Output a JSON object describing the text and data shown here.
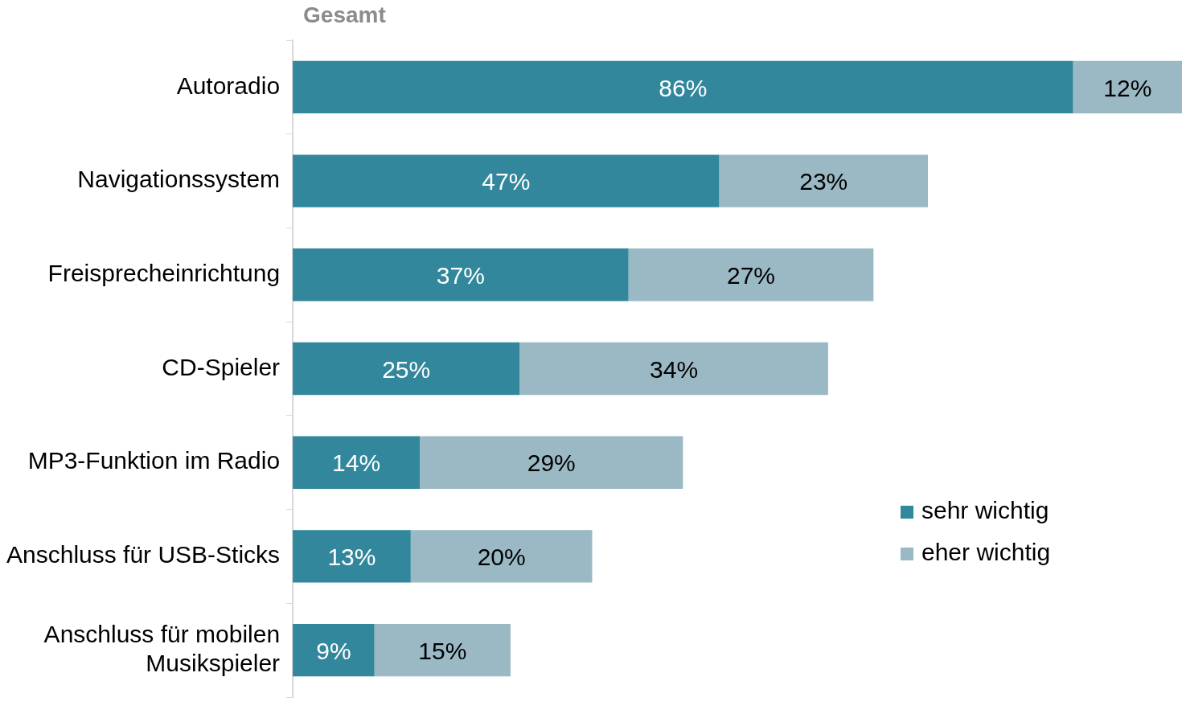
{
  "chart_data": {
    "type": "bar",
    "orientation": "horizontal",
    "stacked": true,
    "title": "Gesamt",
    "categories": [
      "Autoradio",
      "Navigationssystem",
      "Freisprecheinrichtung",
      "CD-Spieler",
      "MP3-Funktion im Radio",
      "Anschluss für USB-Sticks",
      "Anschluss für mobilen Musikspieler"
    ],
    "series": [
      {
        "name": "sehr wichtig",
        "color": "#32879c",
        "values": [
          86,
          47,
          37,
          25,
          14,
          13,
          9
        ],
        "value_labels": [
          "86%",
          "47%",
          "37%",
          "25%",
          "14%",
          "13%",
          "9%"
        ]
      },
      {
        "name": "eher wichtig",
        "color": "#9ab9c4",
        "values": [
          12,
          23,
          27,
          34,
          29,
          20,
          15
        ],
        "value_labels": [
          "12%",
          "23%",
          "27%",
          "34%",
          "29%",
          "20%",
          "15%"
        ]
      }
    ],
    "legend": "bottom right"
  }
}
